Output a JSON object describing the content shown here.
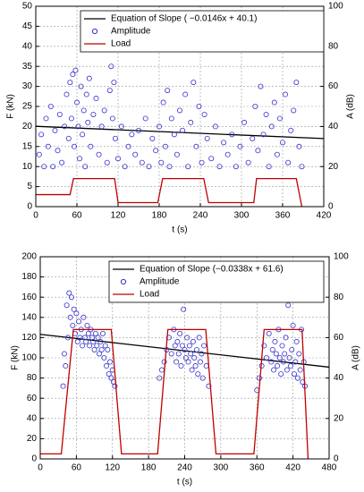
{
  "chart_data": [
    {
      "type": "scatter",
      "xlabel": "t (s)",
      "ylabel": "F (kN)",
      "y2label": "A (dB)",
      "xlim": [
        0,
        420
      ],
      "xticks": [
        0,
        60,
        120,
        180,
        240,
        300,
        360,
        420
      ],
      "ylim": [
        0,
        50
      ],
      "yticks": [
        0,
        5,
        10,
        15,
        20,
        25,
        30,
        35,
        40,
        45,
        50
      ],
      "y2lim": [
        0,
        100
      ],
      "y2ticks": [
        0,
        20,
        40,
        60,
        80,
        100
      ],
      "grid": true,
      "legend": "top",
      "series": [
        {
          "name": "Equation of Slope ( −0.0146x + 40.1)",
          "kind": "line",
          "color": "#000000",
          "axis": "y2",
          "x": [
            0,
            420
          ],
          "values": [
            40.1,
            33.968
          ]
        },
        {
          "name": "Amplitude",
          "kind": "marker",
          "color": "#3333cc",
          "axis": "y2",
          "x": [
            5,
            8,
            12,
            15,
            18,
            22,
            25,
            28,
            32,
            35,
            38,
            42,
            45,
            48,
            50,
            52,
            54,
            56,
            58,
            60,
            62,
            64,
            66,
            68,
            70,
            72,
            74,
            76,
            78,
            80,
            84,
            88,
            92,
            96,
            100,
            104,
            108,
            110,
            112,
            114,
            116,
            120,
            125,
            130,
            135,
            140,
            145,
            150,
            155,
            160,
            165,
            170,
            175,
            180,
            183,
            186,
            189,
            192,
            195,
            198,
            202,
            206,
            210,
            214,
            218,
            222,
            226,
            230,
            234,
            238,
            242,
            246,
            250,
            256,
            262,
            268,
            274,
            280,
            286,
            292,
            298,
            304,
            310,
            316,
            320,
            324,
            328,
            332,
            336,
            340,
            344,
            348,
            352,
            356,
            360,
            364,
            368,
            372,
            376,
            380,
            384,
            388
          ],
          "values": [
            26,
            36,
            20,
            44,
            30,
            50,
            20,
            38,
            28,
            46,
            22,
            40,
            56,
            34,
            62,
            44,
            66,
            30,
            68,
            52,
            40,
            24,
            60,
            36,
            48,
            20,
            56,
            42,
            64,
            30,
            46,
            54,
            26,
            40,
            48,
            22,
            58,
            70,
            44,
            62,
            34,
            24,
            40,
            20,
            30,
            36,
            26,
            38,
            22,
            44,
            20,
            34,
            28,
            40,
            22,
            52,
            30,
            58,
            20,
            44,
            36,
            26,
            48,
            38,
            56,
            20,
            42,
            62,
            30,
            50,
            22,
            46,
            34,
            24,
            40,
            20,
            32,
            26,
            36,
            20,
            30,
            42,
            22,
            34,
            50,
            28,
            60,
            36,
            46,
            20,
            40,
            52,
            26,
            44,
            32,
            56,
            22,
            38,
            48,
            62,
            30,
            20
          ]
        },
        {
          "name": "Load",
          "kind": "line",
          "color": "#c00000",
          "axis": "y",
          "x": [
            0,
            50,
            55,
            115,
            120,
            178,
            185,
            245,
            252,
            318,
            322,
            380,
            388
          ],
          "values": [
            3,
            3,
            7,
            7,
            1,
            1,
            7,
            7,
            1,
            1,
            7,
            7,
            0
          ]
        }
      ]
    },
    {
      "type": "scatter",
      "xlabel": "t (s)",
      "ylabel": "F (kN)",
      "y2label": "A (dB)",
      "xlim": [
        0,
        480
      ],
      "xticks": [
        0,
        60,
        120,
        180,
        240,
        300,
        360,
        420,
        480
      ],
      "ylim": [
        0,
        200
      ],
      "yticks": [
        0,
        20,
        40,
        60,
        80,
        100,
        120,
        140,
        160,
        180,
        200
      ],
      "y2lim": [
        0,
        100
      ],
      "y2ticks": [
        0,
        20,
        40,
        60,
        80,
        100
      ],
      "grid": true,
      "legend": "top",
      "series": [
        {
          "name": "Equation of Slope (−0.0338x + 61.6)",
          "kind": "line",
          "color": "#000000",
          "axis": "y2",
          "x": [
            0,
            480
          ],
          "values": [
            61.6,
            45.376
          ]
        },
        {
          "name": "Amplitude",
          "kind": "marker",
          "color": "#3333cc",
          "axis": "y2",
          "x": [
            38,
            40,
            42,
            44,
            46,
            48,
            50,
            52,
            54,
            56,
            58,
            60,
            62,
            64,
            66,
            68,
            70,
            72,
            74,
            76,
            78,
            80,
            82,
            84,
            86,
            88,
            90,
            92,
            94,
            96,
            98,
            100,
            102,
            104,
            106,
            108,
            110,
            112,
            114,
            116,
            118,
            120,
            122,
            124,
            198,
            202,
            206,
            210,
            214,
            218,
            222,
            224,
            226,
            228,
            230,
            232,
            234,
            236,
            238,
            240,
            242,
            244,
            246,
            248,
            250,
            252,
            254,
            256,
            258,
            260,
            262,
            264,
            266,
            268,
            270,
            272,
            276,
            280,
            360,
            364,
            368,
            372,
            376,
            380,
            384,
            386,
            388,
            390,
            392,
            394,
            396,
            398,
            400,
            402,
            404,
            406,
            408,
            410,
            412,
            414,
            416,
            418,
            420,
            422,
            424,
            426,
            428,
            430,
            432,
            434,
            436,
            438,
            440
          ],
          "values": [
            36,
            52,
            46,
            76,
            60,
            82,
            70,
            80,
            66,
            74,
            62,
            72,
            58,
            68,
            60,
            64,
            56,
            70,
            60,
            58,
            66,
            62,
            56,
            64,
            60,
            58,
            54,
            62,
            56,
            60,
            52,
            58,
            54,
            62,
            50,
            56,
            46,
            54,
            42,
            48,
            40,
            44,
            38,
            36,
            40,
            44,
            48,
            54,
            60,
            52,
            64,
            56,
            48,
            58,
            52,
            62,
            46,
            56,
            74,
            54,
            50,
            60,
            48,
            56,
            52,
            44,
            58,
            50,
            46,
            54,
            42,
            60,
            48,
            52,
            40,
            56,
            46,
            36,
            34,
            40,
            46,
            56,
            50,
            62,
            48,
            54,
            44,
            58,
            52,
            46,
            64,
            50,
            42,
            56,
            48,
            52,
            60,
            44,
            76,
            50,
            46,
            54,
            66,
            42,
            48,
            58,
            40,
            52,
            44,
            64,
            38,
            48,
            36
          ]
        },
        {
          "name": "Load",
          "kind": "line",
          "color": "#c00000",
          "axis": "y",
          "x": [
            0,
            35,
            55,
            118,
            135,
            195,
            212,
            275,
            292,
            355,
            372,
            435,
            445
          ],
          "values": [
            5,
            5,
            128,
            128,
            5,
            5,
            128,
            128,
            5,
            5,
            128,
            128,
            0
          ]
        }
      ]
    }
  ]
}
